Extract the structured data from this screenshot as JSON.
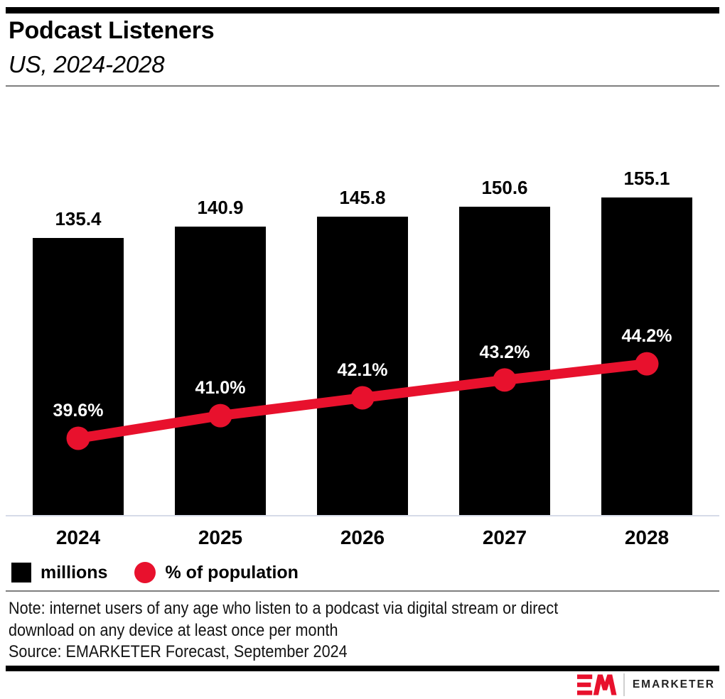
{
  "header": {
    "title": "Podcast Listeners",
    "subtitle": "US, 2024-2028"
  },
  "chart_data": {
    "type": "combo-bar-line",
    "categories": [
      "2024",
      "2025",
      "2026",
      "2027",
      "2028"
    ],
    "series": [
      {
        "name": "millions",
        "type": "bar",
        "color": "#000000",
        "values": [
          135.4,
          140.9,
          145.8,
          150.6,
          155.1
        ],
        "labels": [
          "135.4",
          "140.9",
          "145.8",
          "150.6",
          "155.1"
        ],
        "label_color": "#000000"
      },
      {
        "name": "% of population",
        "type": "line",
        "color": "#e8112d",
        "values": [
          39.6,
          41.0,
          42.1,
          43.2,
          44.2
        ],
        "labels": [
          "39.6%",
          "41.0%",
          "42.1%",
          "43.2%",
          "44.2%"
        ],
        "label_color": "#ffffff"
      }
    ],
    "title": "Podcast Listeners",
    "subtitle": "US, 2024-2028",
    "xlabel": "",
    "ylabel": "",
    "grid": false,
    "legend_position": "bottom"
  },
  "legend": {
    "items": [
      {
        "label": "millions",
        "swatch": "square",
        "color": "#000000"
      },
      {
        "label": "% of population",
        "swatch": "circle",
        "color": "#e8112d"
      }
    ]
  },
  "notes": {
    "note_lines": [
      "Note: internet users of any age who listen to a podcast via digital stream or direct",
      "download on any device at least once per month"
    ],
    "source": "Source: EMARKETER Forecast, September 2024"
  },
  "footer": {
    "brand_text": "EMARKETER"
  },
  "colors": {
    "accent_red": "#e8112d",
    "bar_black": "#000000",
    "axis_line": "#d6dbe8",
    "divider_gray": "#7f7f7f"
  }
}
